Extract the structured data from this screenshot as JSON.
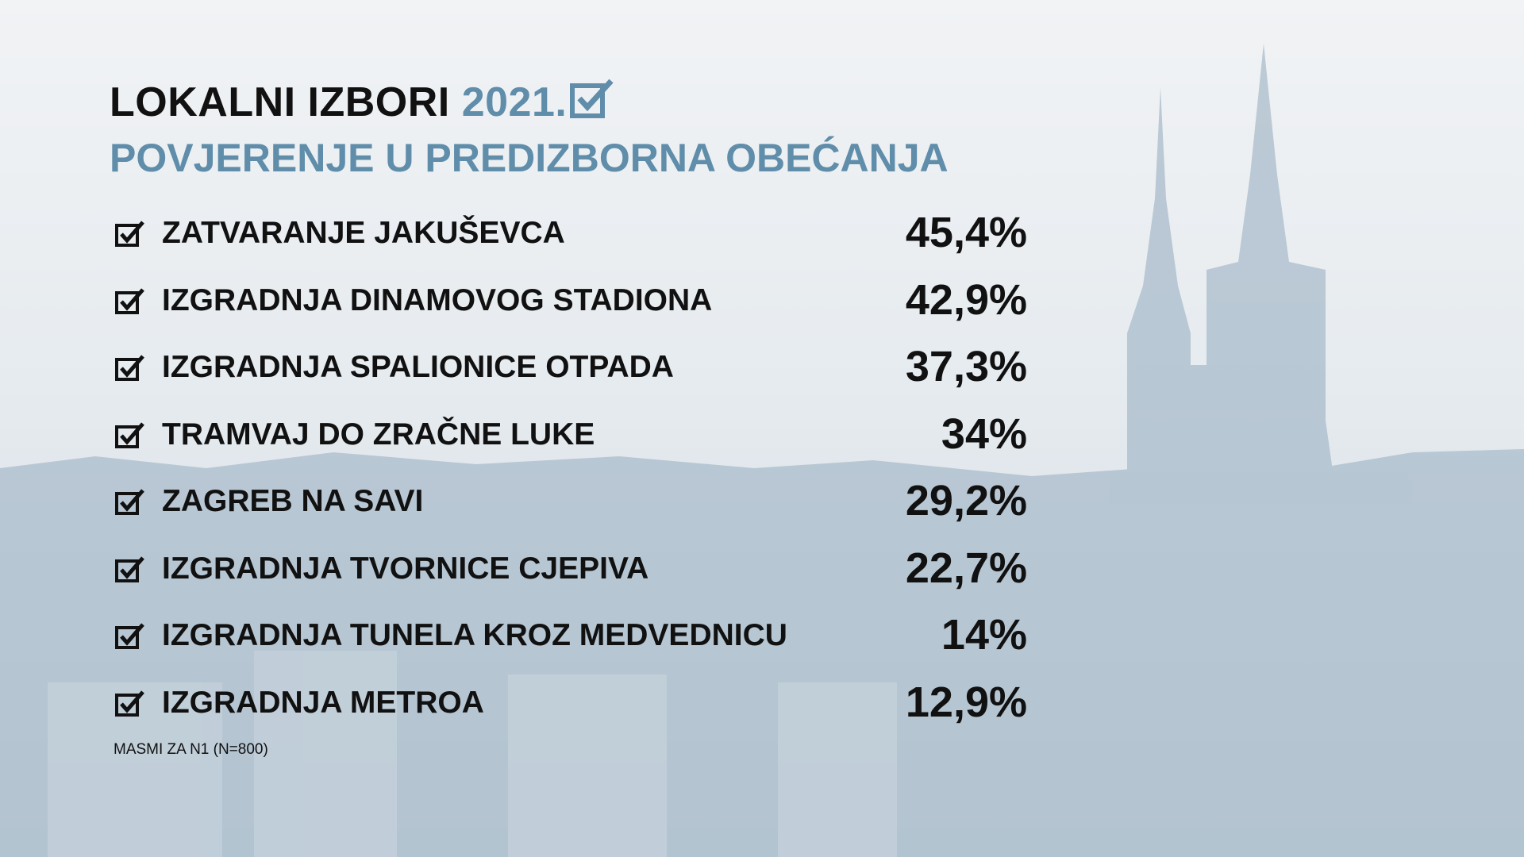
{
  "header": {
    "title": "LOKALNI IZBORI",
    "year": "2021.",
    "subtitle": "POVJERENJE U PREDIZBORNA OBEĆANJA"
  },
  "items": [
    {
      "label": "ZATVARANJE JAKUŠEVCA",
      "value": "45,4%"
    },
    {
      "label": "IZGRADNJA DINAMOVOG STADIONA",
      "value": "42,9%"
    },
    {
      "label": "IZGRADNJA SPALIONICE OTPADA",
      "value": "37,3%"
    },
    {
      "label": "TRAMVAJ DO ZRAČNE LUKE",
      "value": "34%"
    },
    {
      "label": "ZAGREB NA SAVI",
      "value": "29,2%"
    },
    {
      "label": "IZGRADNJA TVORNICE CJEPIVA",
      "value": "22,7%"
    },
    {
      "label": "IZGRADNJA TUNELA KROZ MEDVEDNICU",
      "value": "14%"
    },
    {
      "label": "IZGRADNJA METROA",
      "value": "12,9%"
    }
  ],
  "source": "MASMI ZA N1 (N=800)"
}
